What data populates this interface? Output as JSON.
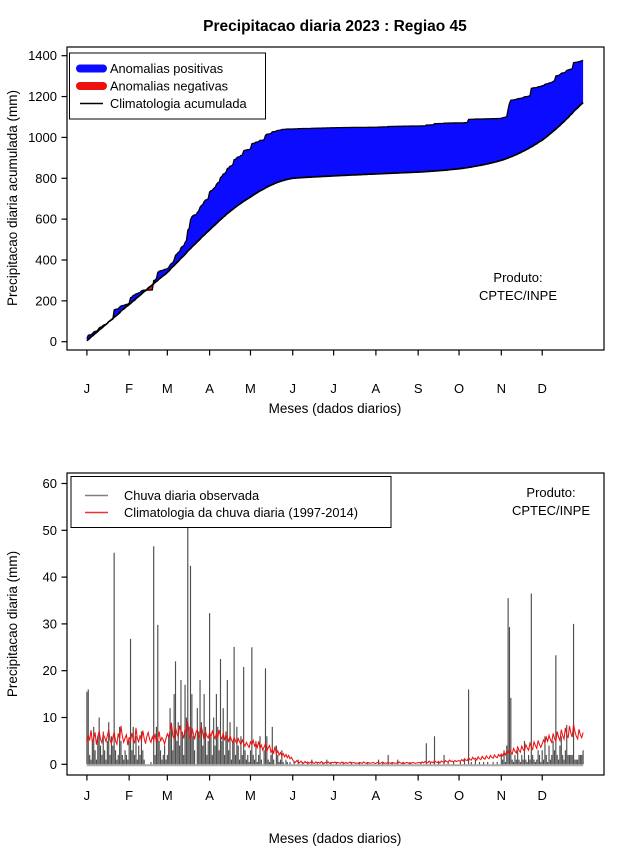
{
  "months": {
    "labels": [
      "J",
      "F",
      "M",
      "A",
      "M",
      "J",
      "J",
      "A",
      "S",
      "O",
      "N",
      "D"
    ],
    "keys": [
      "jan",
      "feb",
      "mar",
      "apr",
      "may",
      "jun",
      "jul",
      "aug",
      "sep",
      "oct",
      "nov",
      "dec"
    ],
    "start_days": [
      1,
      32,
      60,
      91,
      121,
      152,
      182,
      213,
      244,
      274,
      305,
      335
    ]
  },
  "top_chart": {
    "title": "Precipitacao diaria 2023 : Regiao 45",
    "ylabel": "Precipitacao diaria acumulada (mm)",
    "xlabel": "Meses (dados diarios)",
    "yticks": [
      0,
      200,
      400,
      600,
      800,
      1000,
      1200,
      1400
    ],
    "ylim": [
      0,
      1400
    ],
    "legend": [
      {
        "label": "Anomalias positivas",
        "color": "#0b0bff",
        "lw": 8
      },
      {
        "label": "Anomalias negativas",
        "color": "#ee0f0f",
        "lw": 8
      },
      {
        "label": "Climatologia acumulada",
        "color": "#000000",
        "lw": 1.4
      }
    ],
    "note": [
      "Produto:",
      "CPTEC/INPE"
    ]
  },
  "bottom_chart": {
    "ylabel": "Precipitacao diaria (mm)",
    "xlabel": "Meses (dados diarios)",
    "yticks": [
      0,
      10,
      20,
      30,
      40,
      50,
      60
    ],
    "ylim": [
      0,
      60
    ],
    "legend": [
      {
        "label": "Chuva diaria observada",
        "color": "#808080",
        "lw": 1.6
      },
      {
        "label": "Climatologia da chuva diaria (1997-2014)",
        "color": "#ee3333",
        "lw": 1.6
      }
    ],
    "note": [
      "Produto:",
      "CPTEC/INPE"
    ]
  },
  "chart_data": [
    {
      "type": "area",
      "title": "Precipitacao diaria 2023 : Regiao 45",
      "xlabel": "Meses (dados diarios)",
      "ylabel": "Precipitacao diaria acumulada (mm)",
      "ylim": [
        0,
        1400
      ],
      "x_categories": [
        "J",
        "F",
        "M",
        "A",
        "M",
        "J",
        "J",
        "A",
        "S",
        "O",
        "N",
        "D"
      ],
      "legend_position": "top-left",
      "grid": false,
      "series": [
        {
          "name": "Anomalias positivas",
          "role": "fill-where-observed-above-climatology",
          "color": "#0b0bff"
        },
        {
          "name": "Anomalias negativas",
          "role": "fill-where-observed-below-climatology",
          "color": "#ee0f0f"
        },
        {
          "name": "Climatologia acumulada",
          "role": "line",
          "color": "#000000"
        }
      ],
      "derivation": "Both curves are cumulative sums of the daily series of the second chart; observed reaches ~1360 mm and climatology ~1170 mm on Dec 31; small negative-anomaly lobe mid-February near 270 mm."
    },
    {
      "type": "bar",
      "xlabel": "Meses (dados diarios)",
      "ylabel": "Precipitacao diaria (mm)",
      "ylim": [
        0,
        60
      ],
      "x_categories": [
        "J",
        "F",
        "M",
        "A",
        "M",
        "J",
        "J",
        "A",
        "S",
        "O",
        "N",
        "D"
      ],
      "legend_position": "top-left",
      "grid": false,
      "series": [
        {
          "name": "Chuva diaria observada",
          "color": "#4d4d4d",
          "daily_by_month": {
            "jan": [
              15.5,
              16,
              2,
              1,
              5,
              8,
              3,
              1,
              6,
              10,
              4,
              2,
              7,
              3,
              1,
              5,
              9,
              2,
              6,
              4,
              45.2,
              3,
              1,
              2,
              8,
              5,
              2,
              1,
              3,
              2,
              1
            ],
            "feb": [
              5,
              26.8,
              3,
              8,
              2,
              6,
              1,
              4,
              2,
              7,
              3,
              1,
              0,
              0,
              0,
              0,
              0.5,
              0,
              46.6,
              2,
              8,
              29.8,
              5,
              3,
              1,
              2,
              4,
              1
            ],
            "mar": [
              2,
              6,
              12,
              8,
              3,
              15,
              22,
              5,
              9,
              4,
              18,
              7,
              2,
              17,
              10,
              50.9,
              8,
              42.4,
              15,
              6,
              3,
              0,
              12,
              7,
              18,
              9,
              4,
              15,
              8,
              2,
              5
            ],
            "apr": [
              32.3,
              6,
              2,
              10,
              4,
              15,
              8,
              3,
              22.5,
              5,
              12,
              2,
              7,
              18,
              3,
              9,
              1,
              5,
              25.1,
              2,
              8,
              4,
              1,
              6,
              2,
              20.8,
              3,
              1,
              2,
              0.5
            ],
            "may": [
              3,
              25,
              2,
              1,
              5,
              0.5,
              2,
              6,
              1,
              0,
              3,
              20.5,
              6,
              1,
              0.5,
              2,
              8,
              1,
              0,
              4,
              2,
              0.5,
              1,
              3,
              0.5,
              0,
              1,
              0.5,
              0,
              0.5,
              0
            ],
            "jun": [
              0,
              0.5,
              0,
              0,
              1,
              0,
              0,
              0.5,
              0,
              0,
              0,
              0.5,
              0,
              0,
              1,
              0,
              0,
              0,
              0.5,
              0,
              0,
              0,
              0.5,
              0,
              0,
              1,
              0,
              0,
              0.5,
              0
            ],
            "jul": [
              0,
              0,
              0.5,
              0,
              0,
              0,
              0,
              0.5,
              0,
              0,
              0,
              0,
              0,
              0.5,
              0,
              0,
              0,
              0,
              0,
              0.5,
              0,
              0,
              0,
              0,
              0,
              0.5,
              0,
              0,
              0,
              0,
              0
            ],
            "aug": [
              0,
              0,
              1,
              0,
              0,
              0.5,
              0,
              0,
              0,
              2,
              0,
              0,
              0.5,
              0,
              0,
              0,
              1,
              0,
              0,
              0,
              0.5,
              0,
              0,
              0,
              0,
              0.5,
              0,
              0,
              0,
              0,
              0
            ],
            "sep": [
              0,
              0,
              0.5,
              0,
              0,
              0,
              4.5,
              0,
              0,
              0.5,
              0,
              0,
              6,
              0,
              0,
              0.5,
              0,
              0,
              0,
              2,
              0,
              0,
              0.5,
              0,
              0,
              0,
              0.5,
              0,
              0,
              0
            ],
            "oct": [
              0,
              0.5,
              0,
              0,
              1,
              0,
              0,
              16,
              0,
              0.5,
              0,
              0,
              1,
              0,
              0,
              0.5,
              0,
              0,
              0.5,
              0,
              0,
              0.5,
              0,
              0,
              0,
              0.5,
              0,
              0,
              0.5,
              0,
              0
            ],
            "nov": [
              2,
              1,
              3,
              0.5,
              4,
              35.5,
              29.3,
              14.2,
              1,
              0.5,
              2,
              1,
              3,
              1,
              0.5,
              2,
              1,
              5,
              1,
              0.5,
              2,
              1,
              36.5,
              2,
              1,
              0.5,
              1,
              3,
              2,
              0.5
            ],
            "dec": [
              3,
              1,
              6,
              2,
              0.5,
              4,
              1,
              2,
              5,
              3,
              23.3,
              2,
              1,
              4,
              6,
              2,
              1,
              3,
              8.4,
              2,
              2,
              2,
              2,
              30,
              1,
              1,
              1,
              2,
              2,
              2,
              3
            ]
          }
        },
        {
          "name": "Climatologia da chuva diaria (1997-2014)",
          "color": "#ee1111",
          "daily_by_month": {
            "jan": [
              4.5,
              6.2,
              5.1,
              7.3,
              4.8,
              5.5,
              6.8,
              4.2,
              5.9,
              7.1,
              5.3,
              4.6,
              6.4,
              5.8,
              4.9,
              6.1,
              7.4,
              5.2,
              4.4,
              5.7,
              6.9,
              5.0,
              4.3,
              6.6,
              5.4,
              8.2,
              6.0,
              4.7,
              5.6,
              6.3,
              4.1
            ],
            "feb": [
              5.8,
              4.9,
              6.7,
              5.2,
              4.5,
              7.8,
              5.5,
              4.8,
              6.2,
              5.0,
              7.2,
              5.6,
              4.4,
              6.0,
              6.8,
              5.3,
              4.7,
              5.9,
              5.1,
              6.5,
              4.6,
              5.4,
              7.0,
              4.9,
              5.7,
              5.2,
              4.3,
              5.5
            ],
            "mar": [
              6.5,
              5.8,
              7.2,
              8.9,
              6.1,
              5.4,
              7.8,
              6.6,
              5.9,
              8.3,
              7.1,
              6.4,
              5.7,
              7.5,
              6.8,
              9.2,
              6.2,
              5.5,
              7.9,
              6.7,
              5.3,
              6.9,
              7.4,
              5.8,
              6.3,
              8.1,
              6.6,
              5.2,
              7.0,
              6.1,
              5.6
            ],
            "apr": [
              6.8,
              5.9,
              7.1,
              6.2,
              5.5,
              6.6,
              5.8,
              7.3,
              6.0,
              5.4,
              6.7,
              5.1,
              6.3,
              5.7,
              4.9,
              6.1,
              5.3,
              4.6,
              5.8,
              5.0,
              4.4,
              5.5,
              4.8,
              4.2,
              5.2,
              4.5,
              3.9,
              4.7,
              4.1,
              3.6
            ],
            "may": [
              4.8,
              4.2,
              5.1,
              3.9,
              4.5,
              3.6,
              4.9,
              3.4,
              4.1,
              3.0,
              3.7,
              4.4,
              2.8,
              3.5,
              4.0,
              2.6,
              3.2,
              2.4,
              3.8,
              2.2,
              2.9,
              2.0,
              2.5,
              1.8,
              2.3,
              1.6,
              2.1,
              1.4,
              1.9,
              1.2,
              1.5
            ],
            "jun": [
              0.9,
              0.6,
              0.4,
              0.8,
              0.5,
              0.3,
              0.7,
              0.4,
              0.2,
              0.6,
              0.3,
              0.5,
              0.2,
              0.4,
              0.6,
              0.3,
              0.2,
              0.5,
              0.3,
              0.4,
              0.2,
              0.6,
              0.3,
              0.2,
              0.4,
              0.3,
              0.5,
              0.2,
              0.3,
              0.4
            ],
            "jul": [
              0.3,
              0.5,
              0.2,
              0.4,
              0.3,
              0.2,
              0.5,
              0.3,
              0.2,
              0.4,
              0.2,
              0.3,
              0.5,
              0.2,
              0.3,
              0.4,
              0.2,
              0.3,
              0.2,
              0.4,
              0.3,
              0.2,
              0.5,
              0.3,
              0.2,
              0.4,
              0.3,
              0.2,
              0.3,
              0.4,
              0.2
            ],
            "aug": [
              0.2,
              0.4,
              0.3,
              0.2,
              0.3,
              0.5,
              0.2,
              0.3,
              0.2,
              0.4,
              0.3,
              0.2,
              0.4,
              0.3,
              0.2,
              0.3,
              0.2,
              0.5,
              0.3,
              0.2,
              0.4,
              0.2,
              0.3,
              0.4,
              0.2,
              0.3,
              0.2,
              0.4,
              0.3,
              0.2,
              0.3
            ],
            "sep": [
              0.3,
              0.4,
              0.2,
              0.5,
              0.3,
              0.6,
              0.4,
              0.3,
              0.7,
              0.4,
              0.5,
              0.3,
              0.8,
              0.5,
              0.4,
              0.6,
              0.3,
              0.7,
              0.5,
              0.4,
              0.8,
              0.6,
              0.5,
              0.9,
              0.6,
              0.7,
              0.5,
              0.8,
              0.6,
              0.7
            ],
            "oct": [
              0.8,
              0.6,
              1.0,
              0.7,
              1.2,
              0.9,
              0.8,
              1.4,
              1.0,
              0.9,
              1.5,
              1.1,
              1.3,
              0.9,
              1.6,
              1.2,
              1.0,
              1.7,
              1.3,
              1.1,
              1.8,
              1.4,
              1.2,
              1.9,
              1.5,
              1.3,
              2.0,
              1.6,
              1.4,
              2.1,
              1.7
            ],
            "nov": [
              2.2,
              1.8,
              2.5,
              2.0,
              2.8,
              2.3,
              3.1,
              2.6,
              2.2,
              3.4,
              2.8,
              2.4,
              3.7,
              3.0,
              2.6,
              3.9,
              3.2,
              2.8,
              4.2,
              3.5,
              3.0,
              4.5,
              3.7,
              3.2,
              4.8,
              4.0,
              3.4,
              5.1,
              4.2,
              3.6
            ],
            "dec": [
              4.4,
              5.2,
              4.6,
              5.8,
              4.9,
              6.2,
              5.3,
              4.7,
              6.6,
              5.5,
              4.9,
              7.0,
              5.8,
              5.1,
              7.4,
              6.1,
              5.4,
              7.8,
              6.4,
              5.6,
              8.2,
              6.7,
              5.8,
              8.6,
              7.0,
              6.0,
              5.4,
              7.5,
              6.3,
              5.7,
              6.8
            ]
          }
        }
      ]
    }
  ]
}
